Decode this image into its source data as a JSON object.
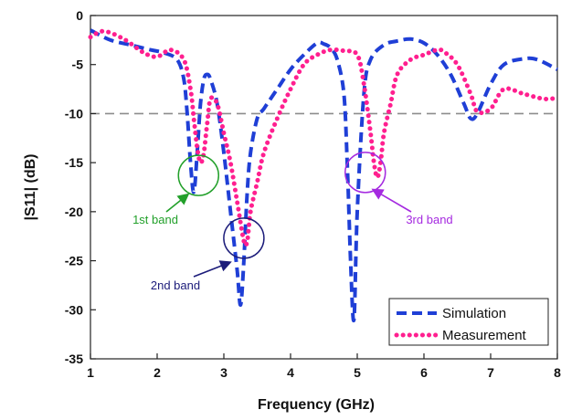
{
  "chart_data": {
    "type": "line",
    "xlabel": "Frequency (GHz)",
    "ylabel": "|S11| (dB)",
    "xlim": [
      1,
      8
    ],
    "ylim": [
      -35,
      0
    ],
    "xticks": [
      1,
      2,
      3,
      4,
      5,
      6,
      7,
      8
    ],
    "yticks": [
      0,
      -5,
      -10,
      -15,
      -20,
      -25,
      -30,
      -35
    ],
    "grid": false,
    "legend": "bottom-right",
    "reference_line": {
      "y": -10,
      "style": "dashed",
      "color": "#8c8c8c"
    },
    "series": [
      {
        "name": "Simulation",
        "color": "#1f3fd6",
        "style": "dashed",
        "x": [
          1.0,
          1.3,
          1.6,
          1.9,
          2.1,
          2.3,
          2.4,
          2.45,
          2.5,
          2.55,
          2.6,
          2.65,
          2.7,
          2.75,
          2.8,
          2.9,
          3.0,
          3.1,
          3.2,
          3.25,
          3.3,
          3.35,
          3.4,
          3.5,
          3.6,
          3.8,
          4.0,
          4.2,
          4.4,
          4.5,
          4.6,
          4.7,
          4.8,
          4.85,
          4.9,
          4.95,
          5.0,
          5.1,
          5.2,
          5.4,
          5.6,
          5.8,
          6.0,
          6.2,
          6.4,
          6.6,
          6.7,
          6.8,
          7.0,
          7.2,
          7.5,
          7.7,
          8.0
        ],
        "y": [
          -1.5,
          -2.5,
          -3.0,
          -3.5,
          -3.8,
          -4.5,
          -6.5,
          -10,
          -15,
          -18,
          -14,
          -9,
          -6.5,
          -6.0,
          -6.5,
          -9,
          -14,
          -20,
          -26,
          -29.5,
          -25,
          -18,
          -14,
          -10.5,
          -9.5,
          -7.5,
          -5.5,
          -4.0,
          -2.8,
          -2.9,
          -3.3,
          -4.5,
          -8,
          -15,
          -25,
          -31,
          -20,
          -8,
          -4.5,
          -3.0,
          -2.6,
          -2.4,
          -2.8,
          -4.0,
          -6.0,
          -9.0,
          -10.5,
          -10.0,
          -7.0,
          -5.0,
          -4.4,
          -4.5,
          -5.5
        ]
      },
      {
        "name": "Measurement",
        "color": "#ff1f8f",
        "style": "dotted",
        "x": [
          1.0,
          1.2,
          1.5,
          1.8,
          2.0,
          2.2,
          2.4,
          2.5,
          2.55,
          2.6,
          2.65,
          2.7,
          2.75,
          2.8,
          2.9,
          3.0,
          3.1,
          3.2,
          3.3,
          3.35,
          3.4,
          3.5,
          3.6,
          3.8,
          4.0,
          4.2,
          4.4,
          4.6,
          4.8,
          5.0,
          5.1,
          5.2,
          5.25,
          5.3,
          5.35,
          5.4,
          5.5,
          5.6,
          5.8,
          6.0,
          6.2,
          6.3,
          6.5,
          6.7,
          6.8,
          7.0,
          7.2,
          7.5,
          7.8,
          8.0
        ],
        "y": [
          -2.2,
          -1.6,
          -2.4,
          -3.8,
          -4.2,
          -3.5,
          -4.5,
          -7.5,
          -10.5,
          -13.5,
          -15,
          -14,
          -11,
          -8.5,
          -9.0,
          -12,
          -15,
          -19,
          -23,
          -23,
          -20,
          -17,
          -14,
          -10.5,
          -7.5,
          -5.0,
          -4.0,
          -3.5,
          -3.6,
          -4.0,
          -7.0,
          -12,
          -15,
          -16.5,
          -15,
          -12,
          -9.0,
          -6.0,
          -4.5,
          -4.0,
          -3.5,
          -3.7,
          -5.0,
          -8.0,
          -9.8,
          -9.5,
          -7.5,
          -8.0,
          -8.5,
          -8.4
        ]
      }
    ],
    "annotations": [
      {
        "text": "1st band",
        "color": "#22a02a",
        "circle_center": [
          2.62,
          -16.3
        ],
        "arrow_to": [
          2.45,
          -18.3
        ]
      },
      {
        "text": "2nd band",
        "color": "#1c1c7a",
        "circle_center": [
          3.3,
          -22.7
        ],
        "arrow_to": [
          3.08,
          -25.2
        ]
      },
      {
        "text": "3rd band",
        "color": "#a52ae0",
        "circle_center": [
          5.12,
          -16.0
        ],
        "arrow_to": [
          5.25,
          -17.8
        ]
      }
    ]
  }
}
